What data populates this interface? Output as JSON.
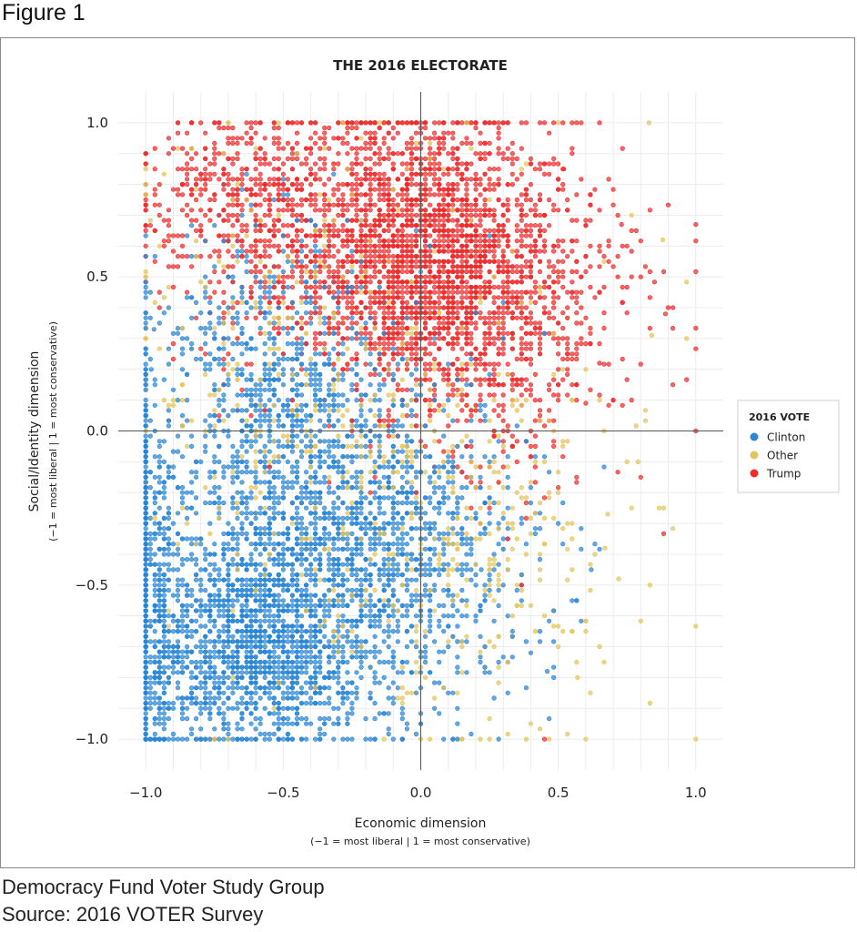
{
  "figure_label": "Figure 1",
  "footer": {
    "line1": "Democracy Fund Voter Study Group",
    "line2": "Source: 2016 VOTER Survey"
  },
  "chart_data": {
    "type": "scatter",
    "title": "THE 2016 ELECTORATE",
    "xlabel": "Economic dimension",
    "xlabel_sub": "(−1 = most liberal | 1 = most conservative)",
    "ylabel": "Social/Identity dimension",
    "ylabel_sub": "(−1 = most liberal | 1 = most conservative)",
    "xlim": [
      -1.1,
      1.1
    ],
    "ylim": [
      -1.1,
      1.1
    ],
    "xticks": [
      -1.0,
      -0.5,
      0.0,
      0.5,
      1.0
    ],
    "xtick_labels": [
      "−1.0",
      "−0.5",
      "0.0",
      "0.5",
      "1.0"
    ],
    "yticks": [
      1.0,
      0.5,
      0.0,
      -0.5,
      -1.0
    ],
    "ytick_labels": [
      "1.0",
      "0.5",
      "0.0",
      "−0.5",
      "−1.0"
    ],
    "grid": true,
    "legend": {
      "title": "2016 VOTE",
      "placement": "right",
      "entries": [
        {
          "label": "Clinton",
          "color": "#2a86d6"
        },
        {
          "label": "Other",
          "color": "#e3c55c"
        },
        {
          "label": "Trump",
          "color": "#ee2c2c"
        }
      ]
    },
    "series": [
      {
        "name": "Clinton",
        "color": "#2a86d6",
        "clusters": [
          {
            "cx": -0.62,
            "cy": -0.7,
            "sx": 0.2,
            "sy": 0.16,
            "n": 1300
          },
          {
            "cx": -0.4,
            "cy": -0.3,
            "sx": 0.3,
            "sy": 0.3,
            "n": 1500
          },
          {
            "cx": -0.05,
            "cy": -0.45,
            "sx": 0.25,
            "sy": 0.25,
            "n": 550
          },
          {
            "cx": -0.55,
            "cy": 0.2,
            "sx": 0.25,
            "sy": 0.25,
            "n": 500
          },
          {
            "cx": -1.0,
            "cy": -0.45,
            "sx": 0.0,
            "sy": 0.35,
            "n": 280
          },
          {
            "cx": -0.95,
            "cy": -0.6,
            "sx": 0.02,
            "sy": 0.3,
            "n": 200
          }
        ],
        "outliers": [
          [
            -0.97,
            0.33
          ],
          [
            -0.98,
            0.2
          ],
          [
            0.22,
            -0.45
          ],
          [
            0.4,
            -0.72
          ],
          [
            0.55,
            -0.55
          ],
          [
            0.46,
            -0.78
          ],
          [
            0.62,
            -0.45
          ],
          [
            0.3,
            -0.35
          ]
        ]
      },
      {
        "name": "Other",
        "color": "#e3c55c",
        "clusters": [
          {
            "cx": -0.3,
            "cy": 0.05,
            "sx": 0.4,
            "sy": 0.45,
            "n": 650
          },
          {
            "cx": 0.25,
            "cy": -0.45,
            "sx": 0.25,
            "sy": 0.3,
            "n": 200
          }
        ],
        "outliers": [
          [
            0.83,
            1.0
          ],
          [
            1.0,
            -1.0
          ],
          [
            0.72,
            -0.48
          ],
          [
            0.67,
            -0.38
          ],
          [
            0.57,
            -0.8
          ],
          [
            0.55,
            -0.65
          ],
          [
            0.68,
            -0.27
          ],
          [
            0.88,
            0.62
          ],
          [
            0.79,
            -0.1
          ],
          [
            0.84,
            0.31
          ]
        ]
      },
      {
        "name": "Trump",
        "color": "#ee2c2c",
        "clusters": [
          {
            "cx": 0.05,
            "cy": 0.55,
            "sx": 0.2,
            "sy": 0.22,
            "n": 1600
          },
          {
            "cx": -0.3,
            "cy": 0.65,
            "sx": 0.3,
            "sy": 0.22,
            "n": 1000
          },
          {
            "cx": 0.3,
            "cy": 0.4,
            "sx": 0.25,
            "sy": 0.3,
            "n": 700
          },
          {
            "cx": -0.7,
            "cy": 0.8,
            "sx": 0.18,
            "sy": 0.12,
            "n": 250
          }
        ],
        "outliers": [
          [
            1.0,
            0.67
          ],
          [
            0.89,
            0.38
          ],
          [
            0.75,
            0.6
          ],
          [
            0.73,
            0.67
          ],
          [
            0.6,
            0.09
          ],
          [
            0.7,
            0.1
          ],
          [
            0.45,
            -1.0
          ],
          [
            -0.75,
            -1.0
          ],
          [
            0.52,
            0.85
          ],
          [
            0.65,
            0.22
          ]
        ]
      }
    ]
  }
}
